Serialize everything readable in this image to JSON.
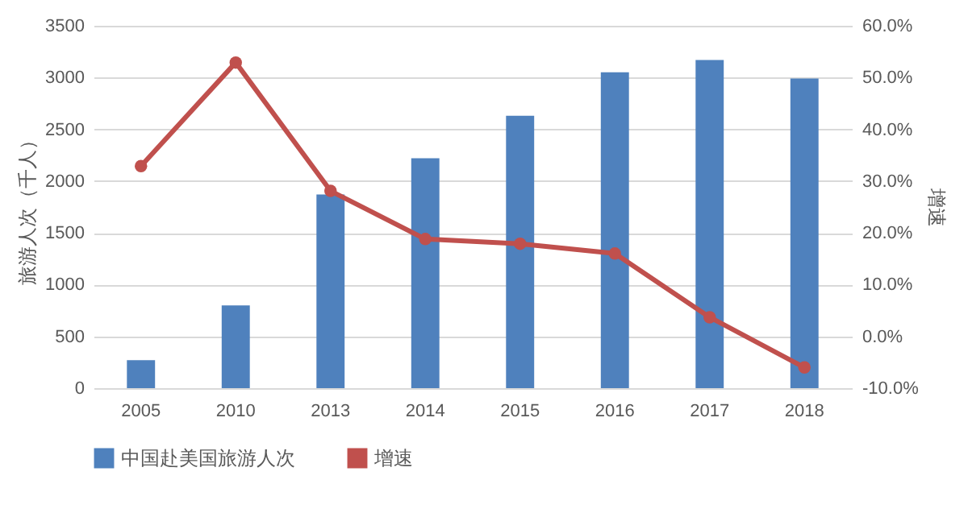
{
  "chart_data": {
    "type": "bar",
    "categories": [
      "2005",
      "2010",
      "2013",
      "2014",
      "2015",
      "2016",
      "2017",
      "2018"
    ],
    "ylabel": "旅游人次（千人）",
    "y2label": "增速",
    "ylim": [
      0,
      3500
    ],
    "yticks": [
      0,
      500,
      1000,
      1500,
      2000,
      2500,
      3000,
      3500
    ],
    "y2lim": [
      -10,
      60
    ],
    "y2ticks": [
      {
        "value": -10,
        "label": "-10.0%"
      },
      {
        "value": 0,
        "label": "0.0%"
      },
      {
        "value": 10,
        "label": "10.0%"
      },
      {
        "value": 20,
        "label": "20.0%"
      },
      {
        "value": 30,
        "label": "30.0%"
      },
      {
        "value": 40,
        "label": "40.0%"
      },
      {
        "value": 50,
        "label": "50.0%"
      },
      {
        "value": 60,
        "label": "60.0%"
      }
    ],
    "grid": "y",
    "legend": "bottom",
    "marker": "circle",
    "series": [
      {
        "name": "中国赴美国旅游人次",
        "color": "#4f81bd",
        "values": [
          270,
          800,
          1870,
          2220,
          2630,
          3050,
          3170,
          2990
        ]
      },
      {
        "name": "增速",
        "type": "line",
        "axis": "y2",
        "color": "#c0504d",
        "values": [
          32.9,
          52.9,
          28.1,
          18.8,
          17.9,
          16.0,
          3.7,
          -6.0
        ]
      }
    ]
  }
}
